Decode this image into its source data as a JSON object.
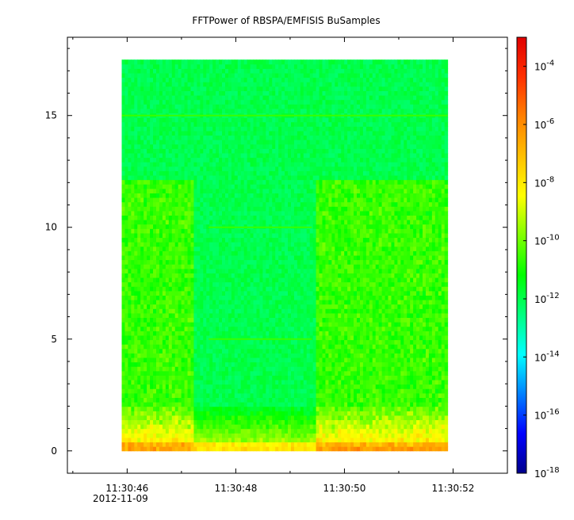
{
  "chart_data": {
    "type": "heatmap",
    "title": "FFTPower of RBSPA/EMFISIS  BuSamples",
    "xlabel": "",
    "ylabel": "",
    "x_tick_labels": [
      "11:30:46",
      "11:30:48",
      "11:30:50",
      "11:30:52"
    ],
    "x_tick_values_s": [
      46,
      48,
      50,
      52
    ],
    "x_date_label": "2012-11-09",
    "xlim_s": [
      44.9,
      53.0
    ],
    "data_time_range_s": [
      45.9,
      51.9
    ],
    "y_tick_labels": [
      "0",
      "5",
      "10",
      "15"
    ],
    "y_tick_values": [
      0,
      5,
      10,
      15
    ],
    "ylim": [
      -1,
      18.5
    ],
    "data_freq_range": [
      0,
      17.5
    ],
    "colorbar": {
      "scale": "log",
      "range": [
        1e-18,
        0.001
      ],
      "tick_bases": [
        "10",
        "10",
        "10",
        "10",
        "10",
        "10",
        "10",
        "10"
      ],
      "tick_exponents": [
        "-4",
        "-6",
        "-8",
        "-10",
        "-12",
        "-14",
        "-16",
        "-18"
      ],
      "tick_values": [
        0.0001,
        1e-06,
        1e-08,
        1e-10,
        1e-12,
        1e-14,
        1e-16,
        1e-18
      ],
      "colormap": [
        "#00008b",
        "#0000ff",
        "#0080ff",
        "#00ffff",
        "#00ff80",
        "#00ff00",
        "#80ff00",
        "#ffff00",
        "#ffc000",
        "#ff8000",
        "#ff3000",
        "#e00000"
      ]
    },
    "features": {
      "background_log_power": -12,
      "band_edge_freq": 12.2,
      "gap_time_range_s": [
        47.2,
        49.5
      ],
      "line_frequencies": [
        15,
        10,
        5
      ],
      "low_freq_enhancement_max": 2
    },
    "colors": {
      "background": "#ffffff",
      "axis": "#000000"
    }
  }
}
